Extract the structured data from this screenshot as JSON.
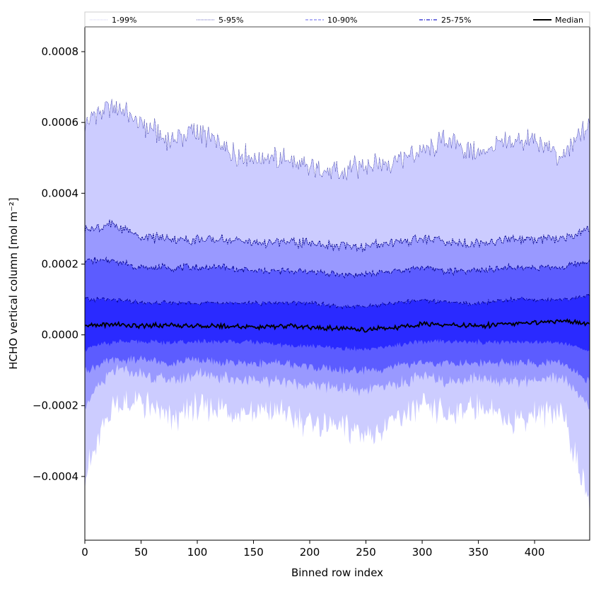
{
  "chart_data": {
    "type": "area",
    "xlabel": "Binned row index",
    "ylabel": "HCHO vertical column [mol m⁻²]",
    "xlim": [
      0,
      449
    ],
    "ylim": [
      -0.00058,
      0.00087
    ],
    "xticks": [
      0,
      50,
      100,
      150,
      200,
      250,
      300,
      350,
      400
    ],
    "xtick_labels": [
      "0",
      "50",
      "100",
      "150",
      "200",
      "250",
      "300",
      "350",
      "400"
    ],
    "yticks": [
      -0.0004,
      -0.0002,
      0.0,
      0.0002,
      0.0004,
      0.0006,
      0.0008
    ],
    "ytick_labels": [
      "−0.0004",
      "−0.0002",
      "0.0000",
      "0.0002",
      "0.0004",
      "0.0006",
      "0.0008"
    ],
    "grid": false,
    "legend_position": "top, spanning full width",
    "colors": {
      "band_1_99": "#ccccff",
      "band_5_95": "#9999ff",
      "band_10_90": "#5c5cff",
      "band_25_75": "#2a2aff",
      "upper_lines": "#00008b",
      "median": "#000000"
    },
    "legend": [
      {
        "label": "1-99%",
        "style": "dotted-light"
      },
      {
        "label": "5-95%",
        "style": "dotted"
      },
      {
        "label": "10-90%",
        "style": "dashed"
      },
      {
        "label": "25-75%",
        "style": "dashdot"
      },
      {
        "label": "Median",
        "style": "solid"
      }
    ],
    "x": [
      0,
      25,
      50,
      75,
      100,
      125,
      150,
      175,
      200,
      225,
      250,
      275,
      300,
      325,
      350,
      375,
      400,
      425,
      449
    ],
    "series": [
      {
        "name": "1-99%",
        "lower": [
          -0.0004,
          -0.0002,
          -0.00019,
          -0.00024,
          -0.0002,
          -0.00021,
          -0.00022,
          -0.00022,
          -0.00025,
          -0.00026,
          -0.00028,
          -0.00025,
          -0.0002,
          -0.00022,
          -0.0002,
          -0.00024,
          -0.00022,
          -0.00022,
          -0.00048
        ],
        "upper": [
          0.0006,
          0.00065,
          0.0006,
          0.00055,
          0.00058,
          0.00052,
          0.0005,
          0.0005,
          0.00047,
          0.00046,
          0.00048,
          0.00049,
          0.00052,
          0.00055,
          0.00051,
          0.00054,
          0.00055,
          0.0005,
          0.0006
        ]
      },
      {
        "name": "5-95%",
        "lower": [
          -0.0002,
          -0.0001,
          -0.00011,
          -0.00013,
          -0.00011,
          -0.00012,
          -0.00013,
          -0.00013,
          -0.00014,
          -0.00015,
          -0.00016,
          -0.00014,
          -0.00012,
          -0.00013,
          -0.00012,
          -0.00013,
          -0.00013,
          -0.00012,
          -0.0002
        ],
        "upper": [
          0.0003,
          0.00031,
          0.00028,
          0.00027,
          0.00027,
          0.00027,
          0.00026,
          0.00026,
          0.00026,
          0.00025,
          0.00025,
          0.00026,
          0.00027,
          0.00026,
          0.00026,
          0.00027,
          0.00027,
          0.00027,
          0.0003
        ]
      },
      {
        "name": "10-90%",
        "lower": [
          -0.0001,
          -7e-05,
          -7e-05,
          -8e-05,
          -7e-05,
          -8e-05,
          -8e-05,
          -8e-05,
          -9e-05,
          -0.0001,
          -0.0001,
          -9e-05,
          -8e-05,
          -8e-05,
          -8e-05,
          -8e-05,
          -8e-05,
          -8e-05,
          -0.00013
        ],
        "upper": [
          0.00021,
          0.00021,
          0.00019,
          0.00019,
          0.00019,
          0.00019,
          0.00018,
          0.00018,
          0.00018,
          0.00017,
          0.00017,
          0.00018,
          0.00019,
          0.00018,
          0.00018,
          0.00019,
          0.00019,
          0.00019,
          0.00021
        ]
      },
      {
        "name": "25-75%",
        "lower": [
          -4e-05,
          -2e-05,
          -2e-05,
          -2e-05,
          -2e-05,
          -2e-05,
          -2e-05,
          -3e-05,
          -3e-05,
          -4e-05,
          -4e-05,
          -3e-05,
          -2e-05,
          -2e-05,
          -2e-05,
          -2e-05,
          -2e-05,
          -2e-05,
          -5e-05
        ],
        "upper": [
          0.0001,
          0.0001,
          9e-05,
          9e-05,
          9e-05,
          9e-05,
          9e-05,
          9e-05,
          9e-05,
          8e-05,
          8e-05,
          9e-05,
          0.0001,
          9e-05,
          9e-05,
          0.0001,
          0.0001,
          0.0001,
          0.00011
        ]
      },
      {
        "name": "Median",
        "values": [
          2.5e-05,
          3e-05,
          2.5e-05,
          2.8e-05,
          2.5e-05,
          2.5e-05,
          2.2e-05,
          2.5e-05,
          2.2e-05,
          1.8e-05,
          1.5e-05,
          2e-05,
          3e-05,
          2.8e-05,
          2.5e-05,
          3e-05,
          3.5e-05,
          4e-05,
          3e-05
        ]
      }
    ]
  }
}
